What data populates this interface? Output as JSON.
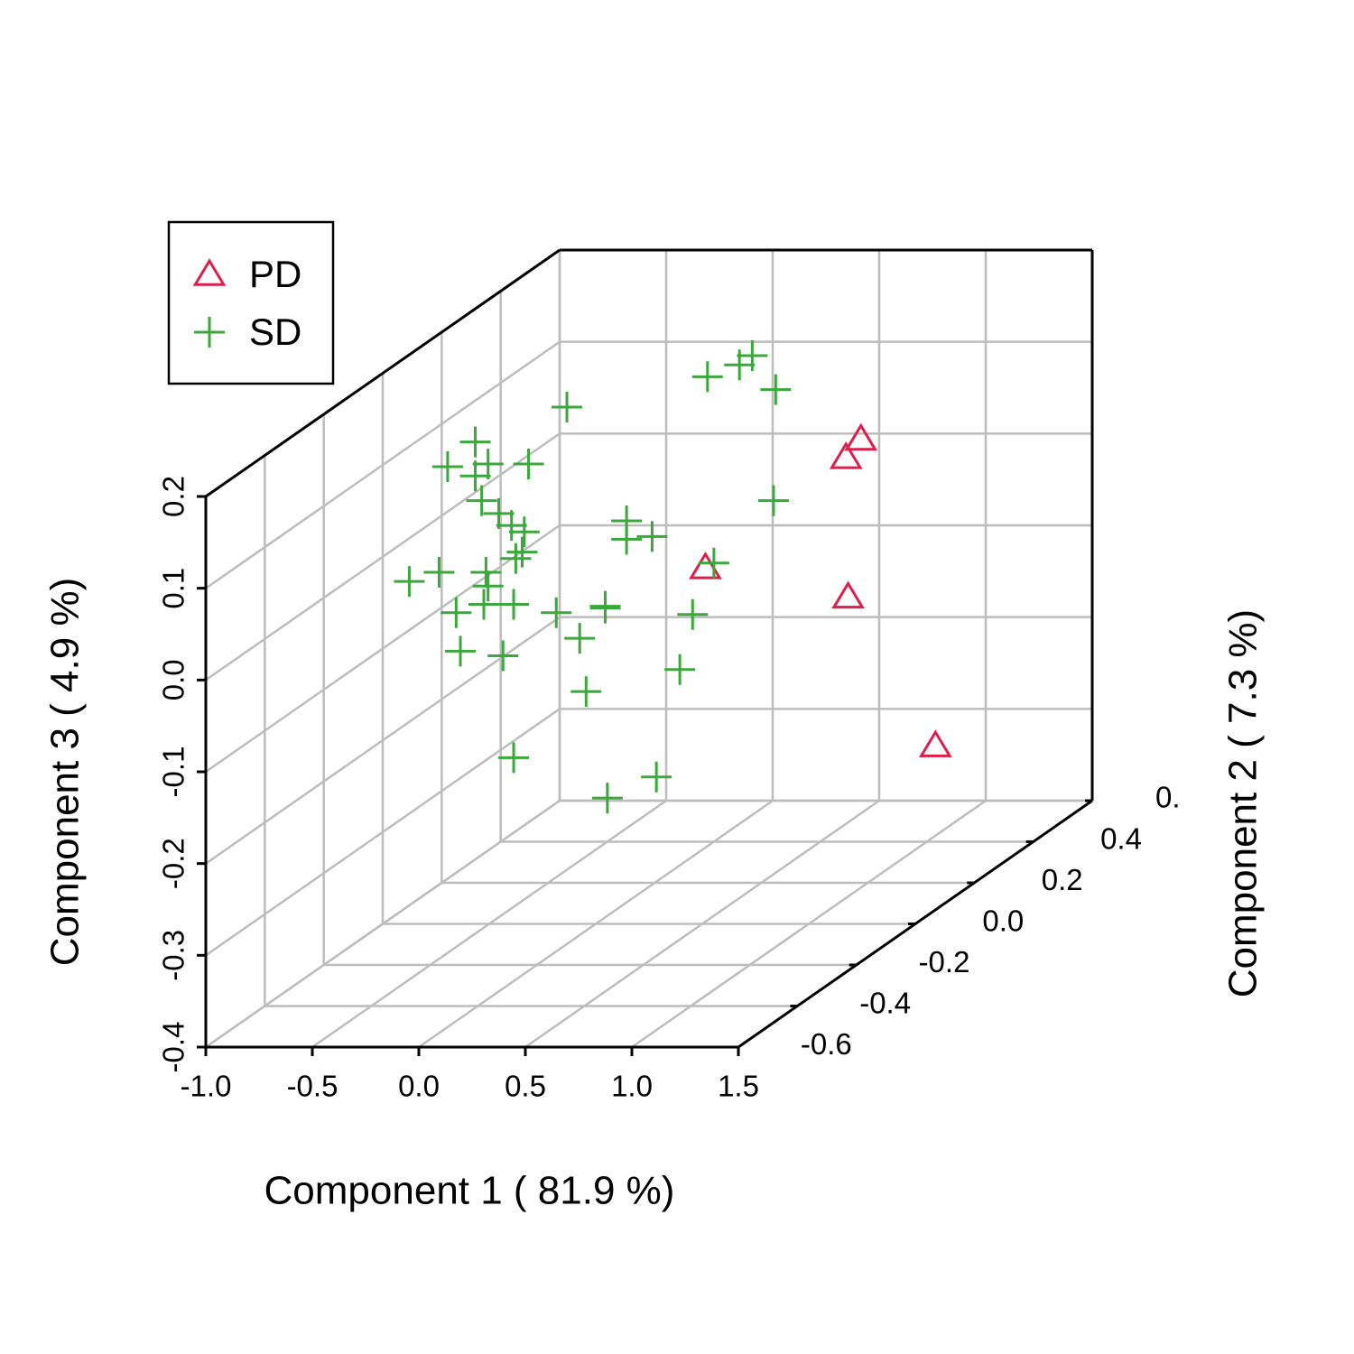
{
  "chart_data": {
    "type": "scatter3d",
    "xlabel": "Component 1 ( 81.9 %)",
    "ylabel": "Component 2 ( 7.3 %)",
    "zlabel": "Component 3 ( 4.9 %)",
    "annotations": [
      "0."
    ],
    "xlim": [
      -1,
      1.5
    ],
    "xticks": [
      {
        "value": -1,
        "label": "-1.0"
      },
      -0.5,
      {
        "value": 0,
        "label": "0.0"
      },
      0.5,
      {
        "value": 1,
        "label": "1.0"
      },
      1.5
    ],
    "ylim": [
      -0.8,
      0.4
    ],
    "yticks": [
      -0.6,
      -0.4,
      -0.2,
      {
        "value": 0,
        "label": "0.0"
      },
      0.2,
      0.4
    ],
    "zlim": [
      -0.4,
      0.2
    ],
    "zticks": [
      -0.4,
      -0.3,
      -0.2,
      -0.1,
      {
        "value": 0,
        "label": "0.0"
      },
      0.1,
      0.2
    ],
    "grid": true,
    "legend": "top-left",
    "series": [
      {
        "name": "PD",
        "color": "#dc1f4d",
        "marker": "triangle",
        "x": [
          1.12,
          1.05,
          0.39,
          1.06,
          1.47
        ],
        "y": [
          -0.11,
          -0.11,
          -0.11,
          -0.11,
          -0.11
        ],
        "z": [
          0.108,
          0.088,
          -0.032,
          -0.064,
          -0.226
        ]
      },
      {
        "name": "SD",
        "color": "#3aa83a",
        "marker": "plus",
        "x": [
          0.61,
          0.55,
          0.4,
          0.72,
          -0.26,
          -0.69,
          -0.82,
          -0.63,
          -0.44,
          -0.69,
          -0.66,
          0.71,
          -0.58,
          -0.52,
          -0.46,
          0.02,
          0.14,
          0.02,
          -0.47,
          -0.5,
          0.43,
          -1.0,
          -0.86,
          -0.64,
          -0.63,
          -0.65,
          -0.51,
          -0.78,
          -0.31,
          -0.08,
          -0.08,
          0.33,
          -0.2,
          -0.76,
          -0.56,
          0.27,
          -0.17,
          -0.51,
          0.16,
          -0.07
        ],
        "y": [
          -0.11,
          -0.11,
          -0.11,
          -0.11,
          -0.11,
          -0.11,
          -0.11,
          -0.11,
          -0.11,
          -0.11,
          -0.11,
          -0.11,
          -0.11,
          -0.11,
          -0.11,
          -0.11,
          -0.11,
          -0.11,
          -0.11,
          -0.11,
          -0.11,
          -0.11,
          -0.11,
          -0.11,
          -0.11,
          -0.11,
          -0.11,
          -0.11,
          -0.11,
          -0.11,
          -0.11,
          -0.11,
          -0.11,
          -0.11,
          -0.11,
          -0.11,
          -0.11,
          -0.11,
          -0.11,
          -0.11
        ],
        "z": [
          0.199,
          0.189,
          0.176,
          0.162,
          0.143,
          0.105,
          0.078,
          0.081,
          0.081,
          0.068,
          0.041,
          0.041,
          0.027,
          0.014,
          0.007,
          0.019,
          0.002,
          -0.001,
          -0.015,
          -0.022,
          -0.027,
          -0.047,
          -0.037,
          -0.037,
          -0.052,
          -0.072,
          -0.072,
          -0.081,
          -0.081,
          -0.074,
          -0.076,
          -0.083,
          -0.109,
          -0.123,
          -0.128,
          -0.143,
          -0.167,
          -0.239,
          -0.26,
          -0.283
        ]
      }
    ]
  }
}
